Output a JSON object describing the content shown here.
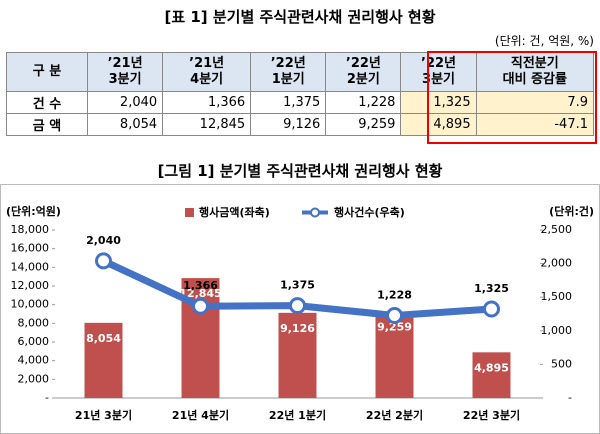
{
  "table": {
    "title": "[표 1] 분기별 주식관련사채 권리행사 현황",
    "unit": "(단위: 건, 억원, %)",
    "header": [
      [
        "구 분"
      ],
      [
        "’21년",
        "3분기"
      ],
      [
        "’21년",
        "4분기"
      ],
      [
        "’22년",
        "1분기"
      ],
      [
        "’22년",
        "2분기"
      ],
      [
        "’22년",
        "3분기"
      ],
      [
        "직전분기",
        "대비 증감률"
      ]
    ],
    "rows": [
      [
        "건 수",
        "2,040",
        "1,366",
        "1,375",
        "1,228",
        "1,325",
        "7.9"
      ],
      [
        "금 액",
        "8,054",
        "12,845",
        "9,126",
        "9,259",
        "4,895",
        "-47.1"
      ]
    ]
  },
  "chart_data": {
    "type": "bar_line",
    "title": "[그림 1] 분기별 주식관련사채 권리행사 현황",
    "ylabel": "(단위:억원)",
    "y2label": "(단위:건)",
    "categories": [
      "21년 3분기",
      "21년 4분기",
      "22년 1분기",
      "22년 2분기",
      "22년 3분기"
    ],
    "series": [
      {
        "name": "행사금액(좌축)",
        "color": "#c0504d",
        "type": "bar",
        "values": [
          8054,
          12845,
          9126,
          9259,
          4895
        ],
        "value_labels": [
          "8,054",
          "12,845",
          "9,126",
          "9,259",
          "4,895"
        ]
      },
      {
        "name": "행사건수(우축)",
        "color": "#4472c4",
        "type": "line",
        "axis": "y2",
        "values": [
          2040,
          1366,
          1375,
          1228,
          1325
        ],
        "value_labels": [
          "2,040",
          "1,366",
          "1,375",
          "1,228",
          "1,325"
        ]
      }
    ],
    "ylim": [
      0,
      18000
    ],
    "yticks": [
      {
        "value": 0,
        "label": "-"
      },
      {
        "value": 2000,
        "label": "2,000"
      },
      {
        "value": 4000,
        "label": "4,000"
      },
      {
        "value": 6000,
        "label": "6,000"
      },
      {
        "value": 8000,
        "label": "8,000"
      },
      {
        "value": 10000,
        "label": "10,000"
      },
      {
        "value": 12000,
        "label": "12,000"
      },
      {
        "value": 14000,
        "label": "14,000"
      },
      {
        "value": 16000,
        "label": "16,000"
      },
      {
        "value": 18000,
        "label": "18,000"
      }
    ],
    "y2lim": [
      0,
      2500
    ],
    "y2ticks": [
      {
        "value": 0,
        "label": "-"
      },
      500,
      {
        "value": 1000,
        "label": "1,000"
      },
      {
        "value": 1500,
        "label": "1,500"
      },
      {
        "value": 2000,
        "label": "2,000"
      },
      {
        "value": 2500,
        "label": "2,500"
      }
    ]
  }
}
